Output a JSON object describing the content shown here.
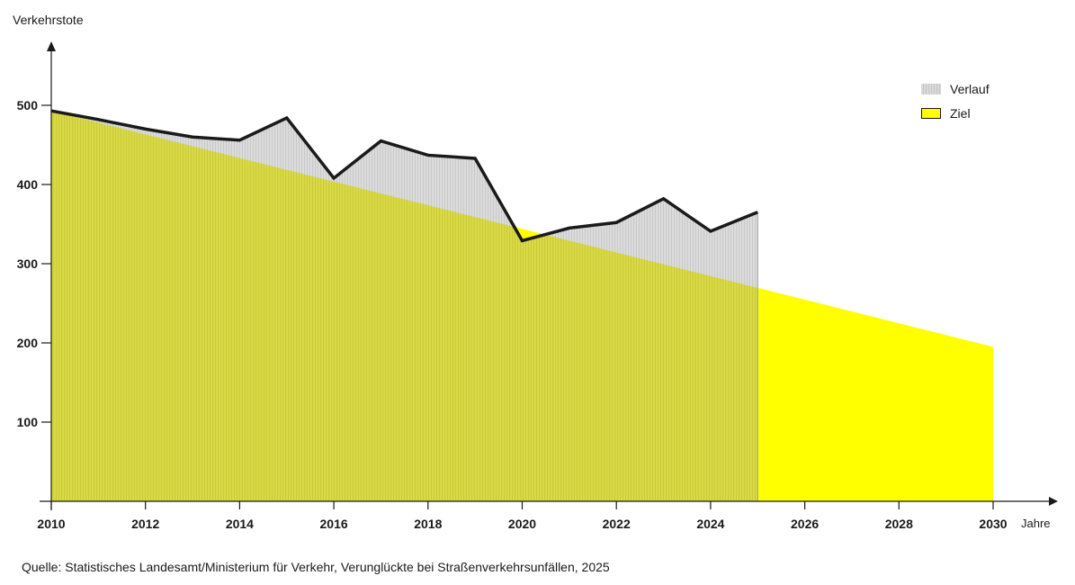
{
  "chart_data": {
    "type": "area",
    "ylabel": "Verkehrstote",
    "xlabel": "Jahre",
    "xlim": [
      2010,
      2030
    ],
    "ylim": [
      0,
      500
    ],
    "xticks": [
      2010,
      2012,
      2014,
      2016,
      2018,
      2020,
      2022,
      2024,
      2026,
      2028,
      2030
    ],
    "yticks": [
      100,
      200,
      300,
      400,
      500
    ],
    "legend_position": "top-right",
    "series": [
      {
        "name": "Verlauf",
        "color": "#d9d9d9",
        "line_color": "#1a1a1a",
        "x": [
          2010,
          2011,
          2012,
          2013,
          2014,
          2015,
          2016,
          2017,
          2018,
          2019,
          2020,
          2021,
          2022,
          2023,
          2024,
          2025
        ],
        "values": [
          493,
          482,
          470,
          460,
          456,
          484,
          408,
          455,
          437,
          433,
          329,
          345,
          352,
          382,
          341,
          365
        ]
      },
      {
        "name": "Ziel",
        "color": "#ffff00",
        "x": [
          2010,
          2030
        ],
        "values": [
          493,
          195
        ]
      }
    ],
    "source": "Quelle: Statistisches Landesamt/Ministerium für Verkehr, Verunglückte bei Straßenverkehrsunfällen, 2025"
  }
}
